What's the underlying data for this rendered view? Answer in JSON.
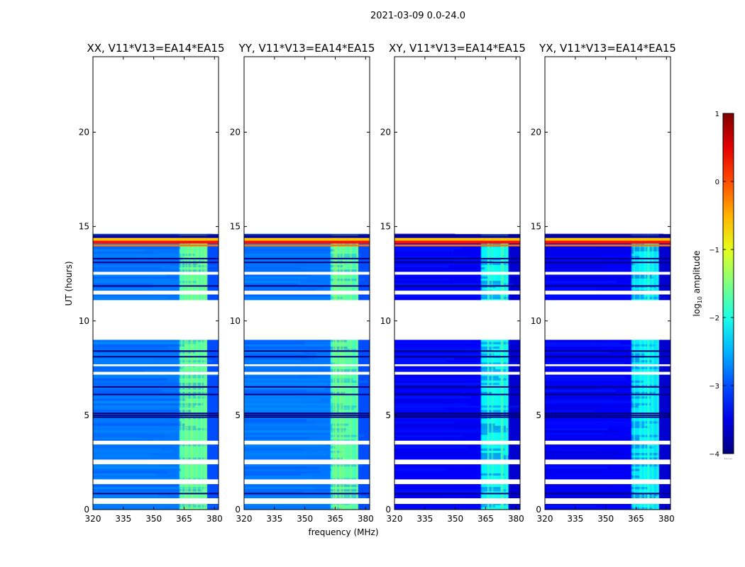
{
  "figure": {
    "suptitle": "2021-03-09 0.0-24.0",
    "xlabel": "frequency (MHz)",
    "ylabel": "UT (hours)"
  },
  "colorbar": {
    "label_prefix": "log",
    "label_sub": "10",
    "label_suffix": " amplitude",
    "range": [
      -4,
      1
    ],
    "ticks": [
      -4,
      -3,
      -2,
      -1,
      0,
      1
    ],
    "tick_labels": [
      "−4",
      "−3",
      "−2",
      "−1",
      "0",
      "1"
    ],
    "colormap": "jet",
    "extra": "......"
  },
  "chart_data": {
    "type": "heatmap",
    "xlim": [
      320,
      382
    ],
    "ylim": [
      0,
      24
    ],
    "xticks": [
      320,
      335,
      350,
      365,
      380
    ],
    "yticks": [
      0,
      5,
      10,
      15,
      20
    ],
    "grid": false,
    "panels": [
      {
        "title": "XX, V11*V13=EA14*EA15",
        "pol": "XX"
      },
      {
        "title": "YY, V11*V13=EA14*EA15",
        "pol": "YY"
      },
      {
        "title": "XY, V11*V13=EA14*EA15",
        "pol": "XY"
      },
      {
        "title": "YX, V11*V13=EA14*EA15",
        "pol": "YX"
      }
    ],
    "data_blocks_ut": [
      [
        0.0,
        9.0
      ],
      [
        11.1,
        14.6
      ]
    ],
    "gaps_ut": [
      [
        0.3,
        0.6
      ],
      [
        1.35,
        1.6
      ],
      [
        2.4,
        2.65
      ],
      [
        3.45,
        3.65
      ],
      [
        7.15,
        7.3
      ],
      [
        7.6,
        7.7
      ],
      [
        9.0,
        11.1
      ],
      [
        11.4,
        11.6
      ],
      [
        12.45,
        12.6
      ]
    ],
    "dark_lines_ut": [
      0.85,
      4.9,
      5.0,
      5.1,
      6.1,
      6.5,
      8.1,
      8.4,
      11.85,
      13.1,
      13.3,
      14.55
    ],
    "hot_rows_ut": [
      [
        13.95,
        14.05
      ],
      [
        14.1,
        14.25
      ],
      [
        14.25,
        14.4
      ],
      [
        14.4,
        14.5
      ]
    ],
    "rfi_band_mhz": [
      363,
      376
    ],
    "background_level": {
      "XX": -2.8,
      "YY": -2.8,
      "XY": -3.4,
      "YX": -3.4
    },
    "rfi_level": {
      "XX": -1.8,
      "YY": -1.8,
      "XY": -2.2,
      "YX": -2.3
    },
    "hot_levels": [
      -0.2,
      0.3,
      -0.6,
      -3.8
    ]
  }
}
